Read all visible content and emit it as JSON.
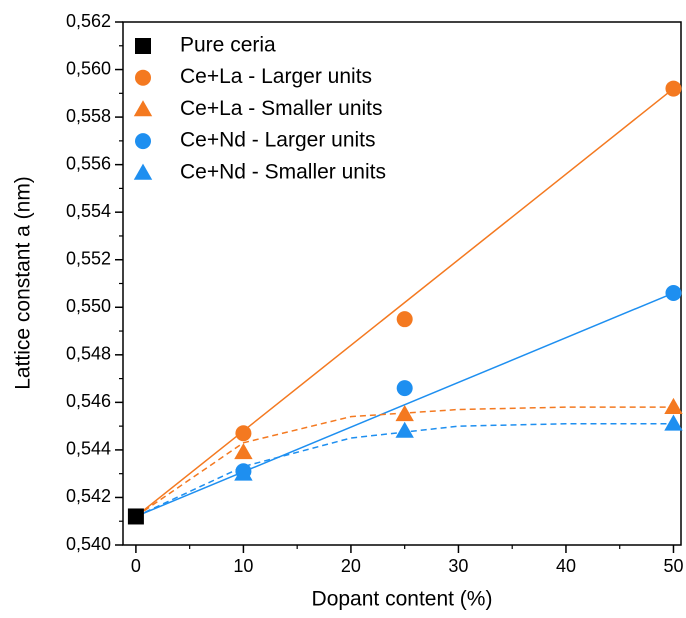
{
  "chart_data": {
    "type": "scatter",
    "x_label": "Dopant content (%)",
    "y_label": "Lattice constant a (nm)",
    "xlim": [
      -1.2,
      50.7
    ],
    "ylim": [
      0.54,
      0.562
    ],
    "xticks": [
      0,
      10,
      20,
      30,
      40,
      50
    ],
    "xminorticks": [
      5,
      15,
      25,
      35,
      45
    ],
    "yticks": [
      {
        "value": 0.54,
        "label": "0,540"
      },
      {
        "value": 0.542,
        "label": "0,542"
      },
      {
        "value": 0.544,
        "label": "0,544"
      },
      {
        "value": 0.546,
        "label": "0,546"
      },
      {
        "value": 0.548,
        "label": "0,548"
      },
      {
        "value": 0.55,
        "label": "0,550"
      },
      {
        "value": 0.552,
        "label": "0,552"
      },
      {
        "value": 0.554,
        "label": "0,554"
      },
      {
        "value": 0.556,
        "label": "0,556"
      },
      {
        "value": 0.558,
        "label": "0,558"
      },
      {
        "value": 0.56,
        "label": "0,560"
      },
      {
        "value": 0.562,
        "label": "0,562"
      }
    ],
    "yminorticks": [
      0.541,
      0.543,
      0.545,
      0.547,
      0.549,
      0.551,
      0.553,
      0.555,
      0.557,
      0.559,
      0.561
    ],
    "legend": "upper left",
    "series": [
      {
        "name": "Pure ceria",
        "color": "#000000",
        "marker": "square",
        "x": [
          0
        ],
        "values": [
          0.5412
        ]
      },
      {
        "name": "Ce+La - Larger units",
        "color": "#f47920",
        "marker": "circle",
        "x": [
          10,
          25,
          50
        ],
        "values": [
          0.5447,
          0.5495,
          0.5592
        ]
      },
      {
        "name": "Ce+La - Smaller units",
        "color": "#f47920",
        "marker": "triangle",
        "x": [
          10,
          25,
          50
        ],
        "values": [
          0.5439,
          0.5455,
          0.5458
        ]
      },
      {
        "name": "Ce+Nd - Larger units",
        "color": "#1e8ff0",
        "marker": "circle",
        "x": [
          10,
          25,
          50
        ],
        "values": [
          0.5431,
          0.5466,
          0.5506
        ]
      },
      {
        "name": "Ce+Nd - Smaller units",
        "color": "#1e8ff0",
        "marker": "triangle",
        "x": [
          10,
          25,
          50
        ],
        "values": [
          0.543,
          0.5448,
          0.5451
        ]
      }
    ],
    "fits": [
      {
        "color": "#f47920",
        "dashed": false,
        "x": [
          0,
          50
        ],
        "values": [
          0.5412,
          0.5592
        ]
      },
      {
        "color": "#1e8ff0",
        "dashed": false,
        "x": [
          0,
          50
        ],
        "values": [
          0.5412,
          0.5506
        ]
      },
      {
        "color": "#f47920",
        "dashed": true,
        "x": [
          0,
          10,
          20,
          30,
          40,
          50
        ],
        "values": [
          0.5412,
          0.5443,
          0.5454,
          0.5457,
          0.5458,
          0.5458
        ]
      },
      {
        "color": "#1e8ff0",
        "dashed": true,
        "x": [
          0,
          10,
          20,
          30,
          40,
          50
        ],
        "values": [
          0.5412,
          0.5433,
          0.5445,
          0.545,
          0.5451,
          0.5451
        ]
      }
    ]
  }
}
